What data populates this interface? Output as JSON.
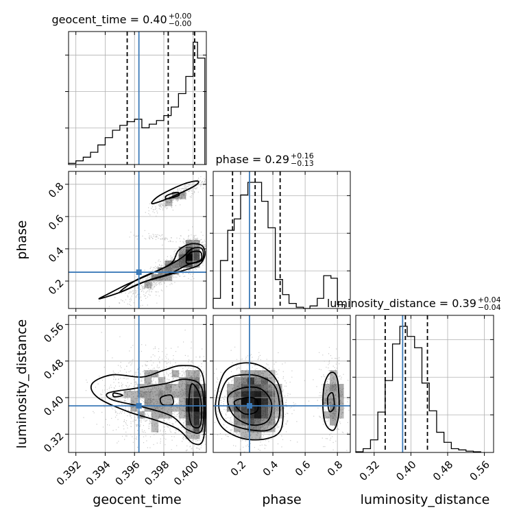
{
  "chart_data": {
    "type": "corner",
    "parameters": [
      "geocent_time",
      "phase",
      "luminosity_distance"
    ],
    "titles": [
      {
        "param": "geocent_time",
        "median": "0.40",
        "plus": "+0.00",
        "minus": "−0.00"
      },
      {
        "param": "phase",
        "median": "0.29",
        "plus": "+0.16",
        "minus": "−0.13"
      },
      {
        "param": "luminosity_distance",
        "median": "0.39",
        "plus": "+0.04",
        "minus": "−0.04"
      }
    ],
    "truths": {
      "geocent_time": 0.3963,
      "phase": 0.255,
      "luminosity_distance": 0.382
    },
    "ranges": {
      "geocent_time": [
        0.3915,
        0.4009
      ],
      "phase": [
        0.03,
        0.88
      ],
      "luminosity_distance": [
        0.28,
        0.58
      ]
    },
    "ticks": {
      "geocent_time": {
        "values": [
          0.392,
          0.394,
          0.396,
          0.398,
          0.4
        ],
        "labels": [
          "0.392",
          "0.394",
          "0.396",
          "0.398",
          "0.400"
        ]
      },
      "phase": {
        "values": [
          0.2,
          0.4,
          0.6,
          0.8
        ],
        "labels": [
          "0.2",
          "0.4",
          "0.6",
          "0.8"
        ]
      },
      "luminosity_distance": {
        "values": [
          0.32,
          0.4,
          0.48,
          0.56
        ],
        "labels": [
          "0.32",
          "0.40",
          "0.48",
          "0.56"
        ]
      }
    },
    "histograms": {
      "geocent_time": {
        "quantiles": [
          0.3955,
          0.3983,
          0.4001
        ],
        "bins": [
          [
            0.3915,
            0.392,
            0.01
          ],
          [
            0.392,
            0.3925,
            0.03
          ],
          [
            0.3925,
            0.393,
            0.06
          ],
          [
            0.393,
            0.3935,
            0.1
          ],
          [
            0.3935,
            0.394,
            0.16
          ],
          [
            0.394,
            0.3945,
            0.22
          ],
          [
            0.3945,
            0.395,
            0.28
          ],
          [
            0.395,
            0.3955,
            0.32
          ],
          [
            0.3955,
            0.396,
            0.35
          ],
          [
            0.396,
            0.3965,
            0.37
          ],
          [
            0.3965,
            0.397,
            0.3
          ],
          [
            0.397,
            0.3975,
            0.33
          ],
          [
            0.3975,
            0.398,
            0.36
          ],
          [
            0.398,
            0.3985,
            0.4
          ],
          [
            0.3985,
            0.399,
            0.47
          ],
          [
            0.399,
            0.3995,
            0.58
          ],
          [
            0.3995,
            0.4,
            0.72
          ],
          [
            0.4,
            0.4003,
            1.0
          ],
          [
            0.4003,
            0.4008,
            0.87
          ]
        ]
      },
      "phase": {
        "quantiles": [
          0.15,
          0.29,
          0.445
        ],
        "bins": [
          [
            0.03,
            0.075,
            0.08
          ],
          [
            0.075,
            0.12,
            0.38
          ],
          [
            0.12,
            0.16,
            0.62
          ],
          [
            0.16,
            0.2,
            0.71
          ],
          [
            0.2,
            0.245,
            0.9
          ],
          [
            0.245,
            0.285,
            1.0
          ],
          [
            0.285,
            0.33,
            1.0
          ],
          [
            0.33,
            0.37,
            0.85
          ],
          [
            0.37,
            0.415,
            0.64
          ],
          [
            0.415,
            0.46,
            0.23
          ],
          [
            0.46,
            0.5,
            0.11
          ],
          [
            0.5,
            0.545,
            0.04
          ],
          [
            0.545,
            0.59,
            0.01
          ],
          [
            0.59,
            0.63,
            0.0
          ],
          [
            0.63,
            0.675,
            0.02
          ],
          [
            0.675,
            0.715,
            0.08
          ],
          [
            0.715,
            0.76,
            0.26
          ],
          [
            0.76,
            0.8,
            0.24
          ],
          [
            0.8,
            0.845,
            0.03
          ]
        ]
      },
      "luminosity_distance": {
        "quantiles": [
          0.344,
          0.388,
          0.436
        ],
        "bins": [
          [
            0.28,
            0.296,
            0.005
          ],
          [
            0.296,
            0.312,
            0.03
          ],
          [
            0.312,
            0.328,
            0.1
          ],
          [
            0.328,
            0.344,
            0.32
          ],
          [
            0.344,
            0.36,
            0.57
          ],
          [
            0.36,
            0.376,
            0.86
          ],
          [
            0.376,
            0.392,
            1.0
          ],
          [
            0.392,
            0.408,
            0.92
          ],
          [
            0.408,
            0.424,
            0.83
          ],
          [
            0.424,
            0.44,
            0.55
          ],
          [
            0.44,
            0.456,
            0.33
          ],
          [
            0.456,
            0.472,
            0.16
          ],
          [
            0.472,
            0.488,
            0.08
          ],
          [
            0.488,
            0.504,
            0.03
          ],
          [
            0.504,
            0.52,
            0.02
          ],
          [
            0.52,
            0.536,
            0.01
          ],
          [
            0.536,
            0.552,
            0.005
          ]
        ]
      }
    },
    "pairs": [
      {
        "x": "geocent_time",
        "y": "phase",
        "clusters": [
          {
            "cx": 0.3983,
            "cy": 0.27,
            "sx": 0.0014,
            "sy": 0.09,
            "rho": 0.9,
            "n": 2200
          },
          {
            "cx": 0.3998,
            "cy": 0.36,
            "sx": 0.00035,
            "sy": 0.05,
            "rho": 0.2,
            "n": 1500
          },
          {
            "cx": 0.3989,
            "cy": 0.73,
            "sx": 0.0009,
            "sy": 0.05,
            "rho": 0.9,
            "n": 700
          },
          {
            "cx": 0.3978,
            "cy": 0.47,
            "sx": 0.001,
            "sy": 0.015,
            "rho": -0.5,
            "n": 150
          }
        ],
        "contours": [
          [
            [
              0.3936,
              0.09
            ],
            [
              0.395,
              0.13
            ],
            [
              0.3965,
              0.19
            ],
            [
              0.398,
              0.23
            ],
            [
              0.3995,
              0.27
            ],
            [
              0.4004,
              0.3
            ],
            [
              0.4008,
              0.36
            ],
            [
              0.4006,
              0.42
            ],
            [
              0.3998,
              0.43
            ],
            [
              0.399,
              0.39
            ],
            [
              0.3985,
              0.31
            ],
            [
              0.397,
              0.24
            ],
            [
              0.3955,
              0.18
            ],
            [
              0.3942,
              0.12
            ]
          ],
          [
            [
              0.395,
              0.13
            ],
            [
              0.3968,
              0.2
            ],
            [
              0.3985,
              0.25
            ],
            [
              0.3996,
              0.3
            ],
            [
              0.4006,
              0.33
            ],
            [
              0.4006,
              0.4
            ],
            [
              0.3999,
              0.4
            ],
            [
              0.3993,
              0.35
            ],
            [
              0.3982,
              0.29
            ],
            [
              0.3962,
              0.21
            ]
          ],
          [
            [
              0.3996,
              0.31
            ],
            [
              0.4005,
              0.33
            ],
            [
              0.4005,
              0.38
            ],
            [
              0.3999,
              0.38
            ],
            [
              0.3996,
              0.35
            ]
          ],
          [
            [
              0.3972,
              0.68
            ],
            [
              0.3985,
              0.72
            ],
            [
              0.4001,
              0.79
            ],
            [
              0.4003,
              0.82
            ],
            [
              0.3993,
              0.8
            ],
            [
              0.3977,
              0.73
            ]
          ],
          [
            [
              0.3982,
              0.71
            ],
            [
              0.399,
              0.73
            ],
            [
              0.3989,
              0.75
            ],
            [
              0.3982,
              0.73
            ]
          ]
        ]
      },
      {
        "x": "geocent_time",
        "y": "luminosity_distance",
        "clusters": [
          {
            "cx": 0.3975,
            "cy": 0.4,
            "sx": 0.0016,
            "sy": 0.045,
            "rho": 0.0,
            "n": 2600
          },
          {
            "cx": 0.4001,
            "cy": 0.38,
            "sx": 0.0004,
            "sy": 0.04,
            "rho": 0.0,
            "n": 1800
          }
        ],
        "contours": [
          [
            [
              0.3931,
              0.43
            ],
            [
              0.3945,
              0.45
            ],
            [
              0.3965,
              0.445
            ],
            [
              0.398,
              0.46
            ],
            [
              0.3992,
              0.47
            ],
            [
              0.4005,
              0.46
            ],
            [
              0.4008,
              0.4
            ],
            [
              0.4007,
              0.31
            ],
            [
              0.4,
              0.3
            ],
            [
              0.399,
              0.33
            ],
            [
              0.3975,
              0.35
            ],
            [
              0.3955,
              0.37
            ],
            [
              0.3935,
              0.4
            ]
          ],
          [
            [
              0.3942,
              0.41
            ],
            [
              0.396,
              0.42
            ],
            [
              0.398,
              0.43
            ],
            [
              0.3995,
              0.44
            ],
            [
              0.4006,
              0.42
            ],
            [
              0.4006,
              0.33
            ],
            [
              0.3996,
              0.33
            ],
            [
              0.3985,
              0.36
            ],
            [
              0.3965,
              0.38
            ],
            [
              0.3945,
              0.395
            ]
          ],
          [
            [
              0.3999,
              0.43
            ],
            [
              0.4005,
              0.4
            ],
            [
              0.4005,
              0.34
            ],
            [
              0.3999,
              0.34
            ],
            [
              0.3997,
              0.38
            ]
          ],
          [
            [
              0.3978,
              0.4
            ],
            [
              0.3985,
              0.405
            ],
            [
              0.3986,
              0.385
            ],
            [
              0.3979,
              0.385
            ]
          ],
          [
            [
              0.3946,
              0.41
            ],
            [
              0.3952,
              0.405
            ],
            [
              0.3946,
              0.402
            ]
          ]
        ]
      },
      {
        "x": "phase",
        "y": "luminosity_distance",
        "clusters": [
          {
            "cx": 0.28,
            "cy": 0.39,
            "sx": 0.095,
            "sy": 0.04,
            "rho": 0.0,
            "n": 3600
          },
          {
            "cx": 0.765,
            "cy": 0.4,
            "sx": 0.04,
            "sy": 0.045,
            "rho": 0.0,
            "n": 700
          }
        ],
        "contours": [
          [
            [
              0.05,
              0.4
            ],
            [
              0.1,
              0.455
            ],
            [
              0.2,
              0.475
            ],
            [
              0.32,
              0.47
            ],
            [
              0.42,
              0.44
            ],
            [
              0.46,
              0.39
            ],
            [
              0.45,
              0.33
            ],
            [
              0.36,
              0.31
            ],
            [
              0.22,
              0.31
            ],
            [
              0.1,
              0.33
            ],
            [
              0.05,
              0.36
            ]
          ],
          [
            [
              0.07,
              0.4
            ],
            [
              0.12,
              0.44
            ],
            [
              0.22,
              0.45
            ],
            [
              0.33,
              0.445
            ],
            [
              0.42,
              0.42
            ],
            [
              0.44,
              0.36
            ],
            [
              0.38,
              0.33
            ],
            [
              0.25,
              0.33
            ],
            [
              0.12,
              0.345
            ],
            [
              0.07,
              0.37
            ]
          ],
          [
            [
              0.12,
              0.4
            ],
            [
              0.2,
              0.42
            ],
            [
              0.32,
              0.42
            ],
            [
              0.39,
              0.39
            ],
            [
              0.37,
              0.35
            ],
            [
              0.27,
              0.34
            ],
            [
              0.16,
              0.36
            ]
          ],
          [
            [
              0.16,
              0.39
            ],
            [
              0.24,
              0.4
            ],
            [
              0.3,
              0.395
            ],
            [
              0.3,
              0.37
            ],
            [
              0.22,
              0.365
            ]
          ],
          [
            [
              0.72,
              0.43
            ],
            [
              0.76,
              0.455
            ],
            [
              0.8,
              0.44
            ],
            [
              0.81,
              0.37
            ],
            [
              0.78,
              0.33
            ],
            [
              0.73,
              0.34
            ],
            [
              0.71,
              0.38
            ]
          ],
          [
            [
              0.74,
              0.4
            ],
            [
              0.77,
              0.41
            ],
            [
              0.78,
              0.38
            ],
            [
              0.75,
              0.37
            ]
          ]
        ]
      }
    ]
  }
}
